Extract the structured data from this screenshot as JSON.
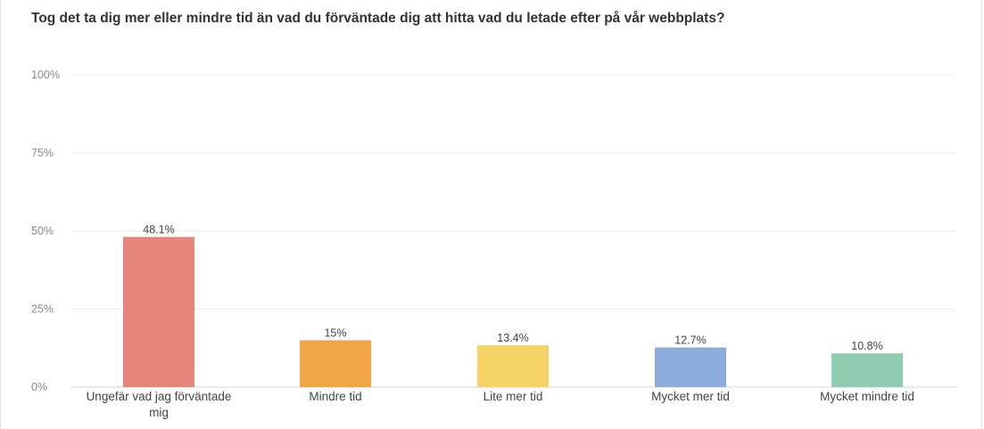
{
  "chart_data": {
    "type": "bar",
    "title": "Tog det ta dig mer eller mindre tid än vad du förväntade dig att hitta vad du letade efter på vår webbplats?",
    "categories": [
      [
        "Ungefär vad jag förväntade",
        "mig"
      ],
      [
        "Mindre tid"
      ],
      [
        "Lite mer tid"
      ],
      [
        "Mycket mer tid"
      ],
      [
        "Mycket mindre tid"
      ]
    ],
    "values": [
      48.1,
      15,
      13.4,
      12.7,
      10.8
    ],
    "value_labels": [
      "48.1%",
      "15%",
      "13.4%",
      "12.7%",
      "10.8%"
    ],
    "colors": [
      "#e5857a",
      "#f0a444",
      "#f6d364",
      "#8cacdb",
      "#8fcbae"
    ],
    "yticks": [
      "0%",
      "25%",
      "50%",
      "75%",
      "100%"
    ],
    "ylim": [
      0,
      100
    ],
    "grid": true,
    "xlabel": "",
    "ylabel": ""
  }
}
